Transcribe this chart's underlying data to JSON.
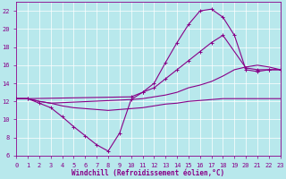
{
  "background_color": "#b8e8ec",
  "line_color": "#880088",
  "grid_color": "#ffffff",
  "xlabel": "Windchill (Refroidissement éolien,°C)",
  "xlim": [
    0,
    23
  ],
  "ylim": [
    6,
    23
  ],
  "xticks": [
    0,
    1,
    2,
    3,
    4,
    5,
    6,
    7,
    8,
    9,
    10,
    11,
    12,
    13,
    14,
    15,
    16,
    17,
    18,
    19,
    20,
    21,
    22,
    23
  ],
  "yticks": [
    6,
    8,
    10,
    12,
    14,
    16,
    18,
    20,
    22
  ],
  "series1": {
    "x": [
      0,
      1,
      2,
      3,
      4,
      5,
      6,
      7,
      8,
      9,
      10,
      11,
      12,
      13,
      14,
      15,
      16,
      17,
      18,
      19,
      20,
      21,
      22,
      23
    ],
    "y": [
      12.3,
      12.3,
      11.8,
      11.3,
      10.3,
      9.2,
      8.2,
      7.2,
      6.5,
      8.5,
      12.2,
      13.0,
      14.0,
      16.3,
      18.5,
      20.5,
      22.0,
      22.2,
      21.3,
      19.3,
      15.5,
      15.3,
      15.5,
      15.5
    ]
  },
  "series2": {
    "x": [
      0,
      1,
      10,
      11,
      12,
      13,
      14,
      15,
      16,
      17,
      18,
      20,
      21,
      22,
      23
    ],
    "y": [
      12.3,
      12.3,
      12.5,
      13.0,
      13.5,
      14.5,
      15.5,
      16.5,
      17.5,
      18.5,
      19.3,
      15.7,
      15.5,
      15.5,
      15.5
    ]
  },
  "series3": {
    "x": [
      0,
      1,
      2,
      3,
      10,
      11,
      12,
      13,
      14,
      15,
      16,
      17,
      18,
      19,
      20,
      21,
      22,
      23
    ],
    "y": [
      12.3,
      12.3,
      12.0,
      11.8,
      12.2,
      12.3,
      12.5,
      12.7,
      13.0,
      13.5,
      13.8,
      14.2,
      14.8,
      15.5,
      15.8,
      16.0,
      15.8,
      15.5
    ]
  },
  "series4": {
    "x": [
      0,
      1,
      2,
      3,
      4,
      5,
      6,
      7,
      8,
      9,
      10,
      11,
      12,
      13,
      14,
      15,
      16,
      17,
      18,
      19,
      20,
      21,
      22,
      23
    ],
    "y": [
      12.3,
      12.3,
      12.0,
      11.8,
      11.5,
      11.3,
      11.2,
      11.1,
      11.0,
      11.1,
      11.2,
      11.3,
      11.5,
      11.7,
      11.8,
      12.0,
      12.1,
      12.2,
      12.3,
      12.3,
      12.3,
      12.3,
      12.3,
      12.3
    ]
  },
  "tick_fontsize": 5,
  "label_fontsize": 5.5
}
